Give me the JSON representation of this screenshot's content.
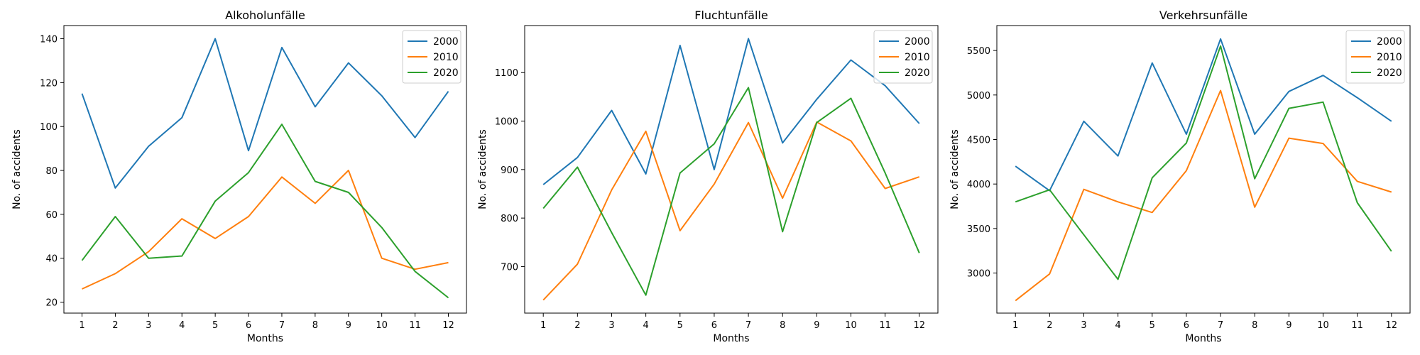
{
  "chart_data": [
    {
      "type": "line",
      "title": "Alkoholunfälle",
      "xlabel": "Months",
      "ylabel": "No. of accidents",
      "categories": [
        "1",
        "2",
        "3",
        "4",
        "5",
        "6",
        "7",
        "8",
        "9",
        "10",
        "11",
        "12"
      ],
      "ylim": [
        15,
        146
      ],
      "yticks": [
        20,
        40,
        60,
        80,
        100,
        120,
        140
      ],
      "legend_position": "top-right",
      "series": [
        {
          "name": "2000",
          "color": "#1f77b4",
          "values": [
            115,
            72,
            91,
            104,
            140,
            89,
            136,
            109,
            129,
            114,
            95,
            116
          ]
        },
        {
          "name": "2010",
          "color": "#ff7f0e",
          "values": [
            26,
            33,
            43,
            58,
            49,
            59,
            77,
            65,
            80,
            40,
            35,
            38
          ]
        },
        {
          "name": "2020",
          "color": "#2ca02c",
          "values": [
            39,
            59,
            40,
            41,
            66,
            79,
            101,
            75,
            70,
            54,
            34,
            22
          ]
        }
      ]
    },
    {
      "type": "line",
      "title": "Fluchtunfälle",
      "xlabel": "Months",
      "ylabel": "No. of accidents",
      "categories": [
        "1",
        "2",
        "3",
        "4",
        "5",
        "6",
        "7",
        "8",
        "9",
        "10",
        "11",
        "12"
      ],
      "ylim": [
        604,
        1197
      ],
      "yticks": [
        700,
        800,
        900,
        1000,
        1100
      ],
      "legend_position": "top-right",
      "series": [
        {
          "name": "2000",
          "color": "#1f77b4",
          "values": [
            869,
            925,
            1022,
            891,
            1156,
            900,
            1170,
            955,
            1045,
            1126,
            1073,
            995
          ]
        },
        {
          "name": "2010",
          "color": "#ff7f0e",
          "values": [
            631,
            705,
            858,
            979,
            774,
            870,
            997,
            841,
            998,
            959,
            861,
            885
          ]
        },
        {
          "name": "2020",
          "color": "#2ca02c",
          "values": [
            820,
            905,
            770,
            641,
            893,
            953,
            1069,
            772,
            997,
            1047,
            893,
            728
          ]
        }
      ]
    },
    {
      "type": "line",
      "title": "Verkehrsunfälle",
      "xlabel": "Months",
      "ylabel": "No. of accidents",
      "categories": [
        "1",
        "2",
        "3",
        "4",
        "5",
        "6",
        "7",
        "8",
        "9",
        "10",
        "11",
        "12"
      ],
      "ylim": [
        2550,
        5780
      ],
      "yticks": [
        3000,
        3500,
        4000,
        4500,
        5000,
        5500
      ],
      "legend_position": "top-right",
      "series": [
        {
          "name": "2000",
          "color": "#1f77b4",
          "values": [
            4200,
            3925,
            4705,
            4315,
            5360,
            4560,
            5630,
            4560,
            5040,
            5220,
            4970,
            4705
          ]
        },
        {
          "name": "2010",
          "color": "#ff7f0e",
          "values": [
            2690,
            2990,
            3940,
            3800,
            3680,
            4150,
            5050,
            3740,
            4515,
            4455,
            4030,
            3910
          ]
        },
        {
          "name": "2020",
          "color": "#2ca02c",
          "values": [
            3800,
            3935,
            3430,
            2930,
            4070,
            4460,
            5550,
            4060,
            4850,
            4920,
            3790,
            3245
          ]
        }
      ]
    }
  ]
}
